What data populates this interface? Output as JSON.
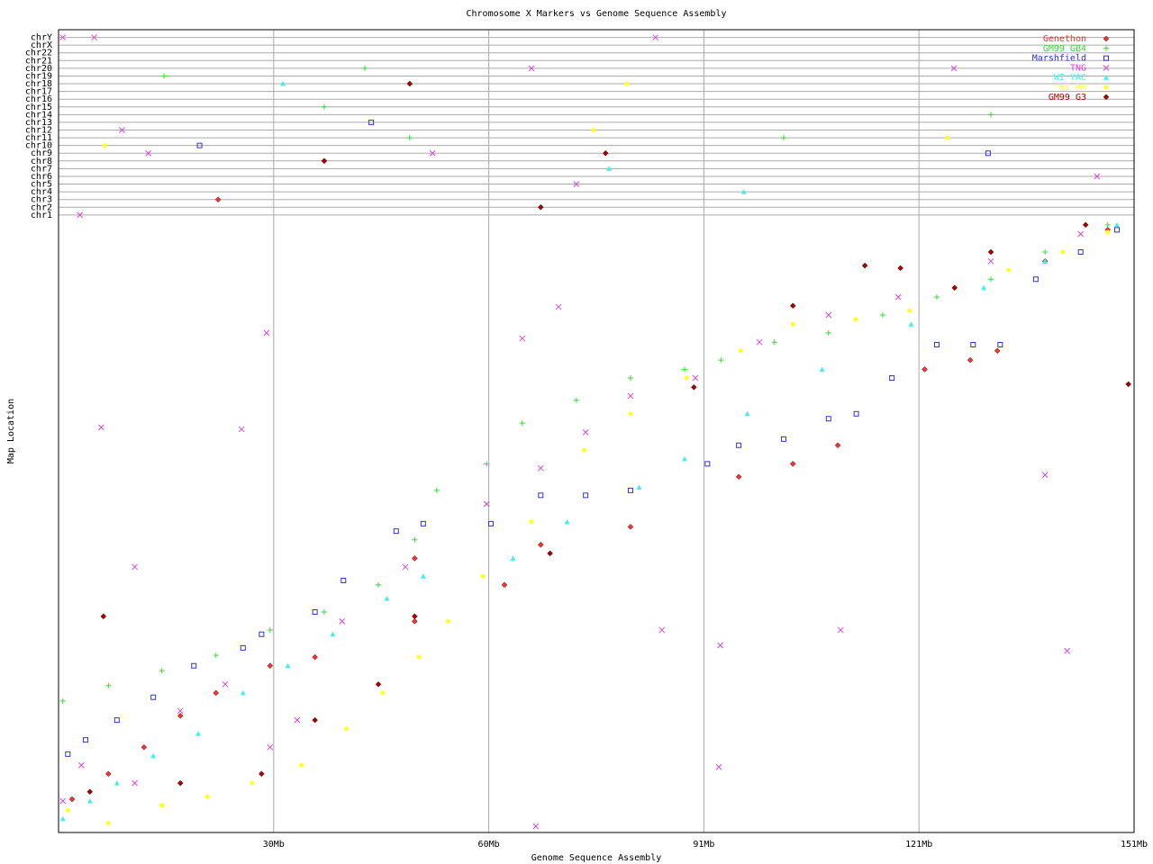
{
  "chart_data": {
    "type": "scatter",
    "title": "Chromosome X Markers vs Genome Sequence Assembly",
    "x_label": "Genome Sequence Assembly",
    "y_label": "Map Location",
    "xlim": [
      0,
      151
    ],
    "ylim": [
      0,
      130
    ],
    "xticks": [
      {
        "value": 30.2,
        "label": "30Mb"
      },
      {
        "value": 60.4,
        "label": "60Mb"
      },
      {
        "value": 90.6,
        "label": "91Mb"
      },
      {
        "value": 120.8,
        "label": "121Mb"
      },
      {
        "value": 151,
        "label": "151Mb"
      }
    ],
    "yticks": [
      {
        "value": 128.75,
        "label": "chrY"
      },
      {
        "value": 127.5,
        "label": "chrX"
      },
      {
        "value": 126.25,
        "label": "chr22"
      },
      {
        "value": 125,
        "label": "chr21"
      },
      {
        "value": 123.75,
        "label": "chr20"
      },
      {
        "value": 122.5,
        "label": "chr19"
      },
      {
        "value": 121.25,
        "label": "chr18"
      },
      {
        "value": 120,
        "label": "chr17"
      },
      {
        "value": 118.75,
        "label": "chr16"
      },
      {
        "value": 117.5,
        "label": "chr15"
      },
      {
        "value": 116.25,
        "label": "chr14"
      },
      {
        "value": 115,
        "label": "chr13"
      },
      {
        "value": 113.75,
        "label": "chr12"
      },
      {
        "value": 112.5,
        "label": "chr11"
      },
      {
        "value": 111.25,
        "label": "chr10"
      },
      {
        "value": 110,
        "label": "chr9"
      },
      {
        "value": 108.75,
        "label": "chr8"
      },
      {
        "value": 107.5,
        "label": "chr7"
      },
      {
        "value": 106.25,
        "label": "chr6"
      },
      {
        "value": 105,
        "label": "chr5"
      },
      {
        "value": 103.75,
        "label": "chr4"
      },
      {
        "value": 102.5,
        "label": "chr3"
      },
      {
        "value": 101.25,
        "label": "chr2"
      },
      {
        "value": 100,
        "label": "chr1"
      }
    ],
    "grid": true,
    "legend": "upper right",
    "series": [
      {
        "name": "Genethon",
        "color": "#ff3030",
        "marker": "diamond",
        "x": [
          1.9,
          7,
          12,
          17.1,
          22.1,
          29.7,
          36,
          50,
          62.6,
          67.7,
          80.3,
          95.5,
          103.1,
          109.4,
          121.6,
          128,
          131.8,
          138.5,
          147.3,
          50,
          22.4
        ],
        "values": [
          5.4,
          9.5,
          13.8,
          18.9,
          22.6,
          27,
          28.4,
          44.4,
          40.1,
          46.6,
          49.5,
          57.6,
          59.7,
          62.7,
          75,
          76.5,
          78,
          92.5,
          97.6,
          34.2,
          102.5
        ]
      },
      {
        "name": "GM99 GB4",
        "color": "#33dd33",
        "marker": "plus",
        "x": [
          0.6,
          7,
          14.5,
          22.1,
          29.7,
          37.3,
          44.9,
          50,
          53.1,
          60.1,
          65.1,
          72.7,
          80.3,
          87.9,
          93,
          100.5,
          108.1,
          115.7,
          123.3,
          130.9,
          138.5,
          147.3,
          14.8,
          43,
          37.3,
          49.3,
          101.8,
          130.9
        ],
        "values": [
          21.3,
          23.8,
          26.2,
          28.7,
          32.8,
          35.7,
          40.1,
          47.4,
          55.4,
          59.7,
          66.3,
          70,
          73.6,
          75,
          76.5,
          79.4,
          80.9,
          83.8,
          86.7,
          89.6,
          94,
          98.4,
          122.5,
          123.75,
          117.5,
          112.5,
          112.5,
          116.25
        ]
      },
      {
        "name": "Marshfield",
        "color": "#3333cc",
        "marker": "square",
        "x": [
          1.3,
          3.8,
          8.2,
          13.3,
          19,
          25.9,
          28.5,
          36,
          40,
          47.4,
          51.2,
          60.7,
          67.7,
          74,
          80.3,
          91.1,
          95.5,
          101.8,
          108.1,
          112,
          117,
          123.3,
          128.4,
          132.2,
          137.2,
          143.5,
          148.6,
          43.9,
          19.8,
          130.5
        ],
        "values": [
          12.7,
          15,
          18.2,
          21.9,
          27,
          29.9,
          32.1,
          35.7,
          40.8,
          48.8,
          50,
          50,
          54.6,
          54.6,
          55.4,
          59.7,
          62.7,
          63.7,
          67,
          67.8,
          73.6,
          79,
          79,
          79,
          89.6,
          94,
          97.6,
          115,
          111.25,
          110
        ]
      },
      {
        "name": "TNG",
        "color": "#dd44dd",
        "marker": "cross",
        "x": [
          0.6,
          3.2,
          10.7,
          17.1,
          23.4,
          29.7,
          33.5,
          39.8,
          48.7,
          60.1,
          67.7,
          74,
          80.3,
          89.4,
          98.4,
          108.1,
          117.9,
          130.9,
          143.5,
          10.7,
          29.2,
          6,
          25.7,
          138.5,
          84.7,
          109.8,
          92.9,
          65.1,
          70.2,
          92.7,
          67,
          141.6,
          0.6,
          5,
          83.8,
          66.4,
          125.7,
          3,
          12.6,
          8.9,
          52.5,
          72.7,
          145.8
        ],
        "values": [
          5.1,
          10.9,
          8,
          19.7,
          24,
          13.8,
          18.2,
          34.2,
          43,
          53.2,
          59,
          64.8,
          70.7,
          73.6,
          79.4,
          83.8,
          86.7,
          92.5,
          96.9,
          43,
          80.9,
          65.6,
          65.3,
          57.9,
          32.8,
          32.8,
          30.3,
          80,
          85.1,
          10.6,
          1,
          29.4,
          128.75,
          128.75,
          128.75,
          123.75,
          123.75,
          100,
          110,
          113.75,
          110,
          105,
          106.25
        ]
      },
      {
        "name": "WI YAC",
        "color": "#44eeee",
        "marker": "triangle",
        "x": [
          0.6,
          4.4,
          8.2,
          13.3,
          19.6,
          25.9,
          32.2,
          38.5,
          46.1,
          51.2,
          63.8,
          71.4,
          81.5,
          87.9,
          96.7,
          107.2,
          119.7,
          129.9,
          138.5,
          148.6,
          31.5,
          77.3,
          96.2
        ],
        "values": [
          2.2,
          5.1,
          8,
          12.4,
          16,
          22.6,
          27,
          32.1,
          37.9,
          41.5,
          44.4,
          50.3,
          55.9,
          60.5,
          67.8,
          75,
          82.3,
          88.2,
          92.5,
          98.4,
          121.25,
          107.5,
          103.75
        ]
      },
      {
        "name": "WI RH",
        "color": "#ffff22",
        "marker": "circle",
        "x": [
          1.3,
          7,
          14.5,
          20.9,
          27.2,
          34.1,
          40.4,
          45.5,
          50.6,
          54.7,
          59.6,
          66.4,
          73.8,
          80.3,
          88.2,
          95.8,
          103.1,
          111.9,
          119.5,
          125.8,
          133.4,
          141,
          147.3,
          6.5,
          79.8,
          75.1,
          124.8
        ],
        "values": [
          3.6,
          1.5,
          4.4,
          5.8,
          8,
          10.9,
          16.8,
          22.6,
          28.4,
          34.2,
          41.5,
          50.3,
          61.9,
          67.8,
          73.6,
          78,
          82.3,
          83.1,
          84.5,
          88.2,
          91.1,
          94,
          97.2,
          111.25,
          121.25,
          113.75,
          112.5
        ]
      },
      {
        "name": "GM99 G3",
        "color": "#aa0000",
        "marker": "diamond",
        "x": [
          6.3,
          4.4,
          17.1,
          28.5,
          36,
          44.9,
          50,
          69,
          89.2,
          103.1,
          113.2,
          118.2,
          125.8,
          130.9,
          144.2,
          150.2,
          49.3,
          37.3,
          76.8,
          67.7
        ],
        "values": [
          35,
          6.6,
          8,
          9.5,
          18.2,
          24,
          35,
          45.2,
          72.1,
          85.3,
          91.8,
          91.4,
          88.2,
          94,
          98.4,
          72.6,
          121.25,
          108.75,
          110,
          101.25
        ]
      }
    ]
  }
}
